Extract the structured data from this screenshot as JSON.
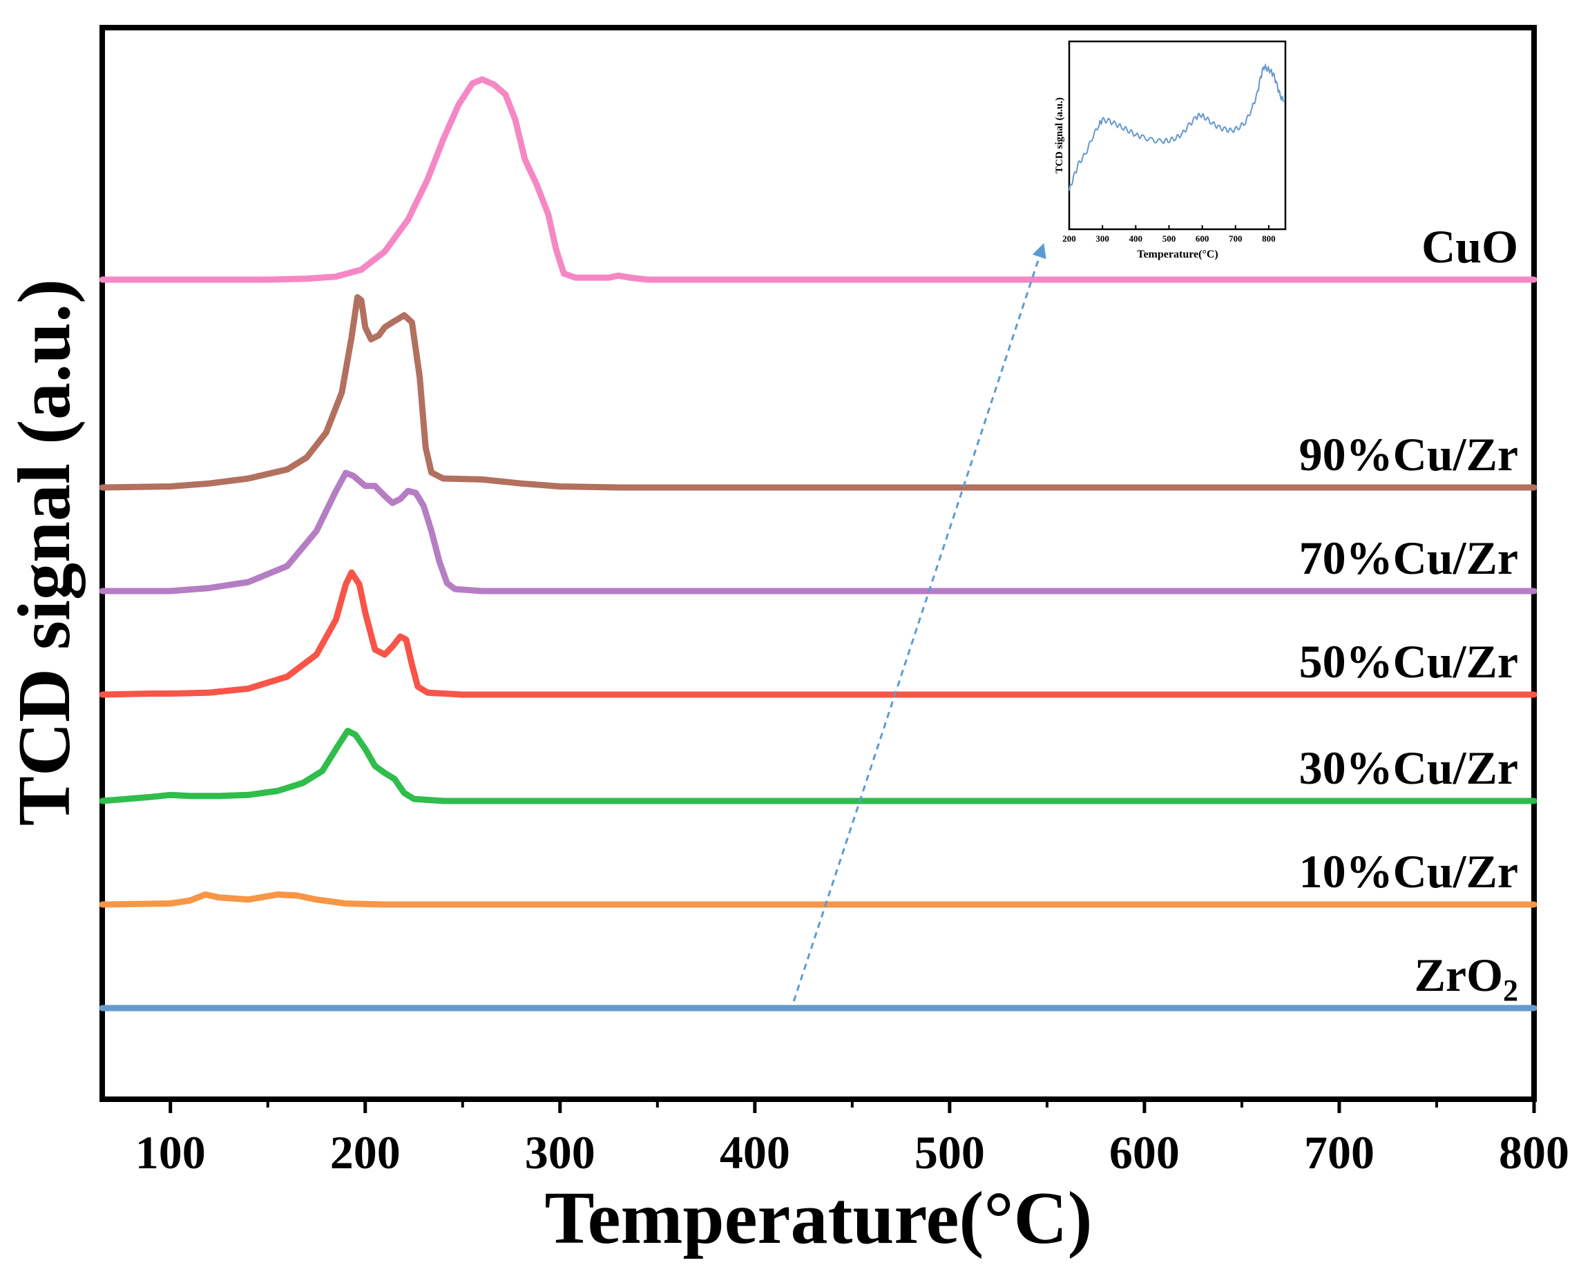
{
  "chart_data": {
    "type": "line",
    "xlabel": "Temperature(°C)",
    "ylabel": "TCD signal (a.u.)",
    "xlim": [
      65,
      800
    ],
    "xticks": [
      100,
      200,
      300,
      400,
      500,
      600,
      700,
      800
    ],
    "yticks_shown": false,
    "label_position": "right, above each trace",
    "series": [
      {
        "name": "ZrO2",
        "label": "ZrO",
        "label_sub": "2",
        "color": "#6699cc",
        "offset": 0,
        "points": [
          [
            65,
            0
          ],
          [
            800,
            0
          ]
        ]
      },
      {
        "name": "10%Cu/Zr",
        "label": "10%Cu/Zr",
        "color": "#f79646",
        "offset": 1,
        "points": [
          [
            65,
            0
          ],
          [
            100,
            1
          ],
          [
            110,
            4
          ],
          [
            118,
            10
          ],
          [
            125,
            7
          ],
          [
            140,
            5
          ],
          [
            155,
            10
          ],
          [
            165,
            9
          ],
          [
            175,
            5
          ],
          [
            190,
            1
          ],
          [
            210,
            0
          ],
          [
            800,
            0
          ]
        ]
      },
      {
        "name": "30%Cu/Zr",
        "label": "30%Cu/Zr",
        "color": "#2fbd4c",
        "offset": 2,
        "points": [
          [
            65,
            0
          ],
          [
            90,
            4
          ],
          [
            100,
            6
          ],
          [
            110,
            5
          ],
          [
            125,
            5
          ],
          [
            140,
            6
          ],
          [
            155,
            10
          ],
          [
            168,
            18
          ],
          [
            178,
            30
          ],
          [
            186,
            55
          ],
          [
            191,
            70
          ],
          [
            195,
            66
          ],
          [
            200,
            52
          ],
          [
            205,
            35
          ],
          [
            210,
            28
          ],
          [
            215,
            22
          ],
          [
            220,
            8
          ],
          [
            225,
            2
          ],
          [
            240,
            0
          ],
          [
            800,
            0
          ]
        ]
      },
      {
        "name": "50%Cu/Zr",
        "label": "50%Cu/Zr",
        "color": "#f85448",
        "offset": 3,
        "points": [
          [
            65,
            0
          ],
          [
            90,
            1
          ],
          [
            100,
            1
          ],
          [
            120,
            2
          ],
          [
            140,
            6
          ],
          [
            160,
            18
          ],
          [
            175,
            40
          ],
          [
            185,
            75
          ],
          [
            190,
            110
          ],
          [
            193,
            122
          ],
          [
            197,
            110
          ],
          [
            200,
            82
          ],
          [
            205,
            45
          ],
          [
            210,
            40
          ],
          [
            214,
            48
          ],
          [
            218,
            58
          ],
          [
            221,
            55
          ],
          [
            224,
            30
          ],
          [
            227,
            8
          ],
          [
            232,
            2
          ],
          [
            250,
            0
          ],
          [
            800,
            0
          ]
        ]
      },
      {
        "name": "70%Cu/Zr",
        "label": "70%Cu/Zr",
        "color": "#b57dc3",
        "offset": 4,
        "points": [
          [
            65,
            0
          ],
          [
            100,
            0
          ],
          [
            120,
            3
          ],
          [
            140,
            9
          ],
          [
            160,
            25
          ],
          [
            175,
            60
          ],
          [
            185,
            100
          ],
          [
            190,
            118
          ],
          [
            194,
            115
          ],
          [
            200,
            105
          ],
          [
            205,
            105
          ],
          [
            210,
            95
          ],
          [
            214,
            88
          ],
          [
            218,
            92
          ],
          [
            222,
            100
          ],
          [
            226,
            98
          ],
          [
            230,
            85
          ],
          [
            234,
            60
          ],
          [
            238,
            30
          ],
          [
            242,
            8
          ],
          [
            246,
            2
          ],
          [
            260,
            0
          ],
          [
            800,
            0
          ]
        ]
      },
      {
        "name": "90%Cu/Zr",
        "label": "90%Cu/Zr",
        "color": "#b2705f",
        "offset": 5,
        "points": [
          [
            65,
            0
          ],
          [
            100,
            1
          ],
          [
            120,
            4
          ],
          [
            140,
            9
          ],
          [
            160,
            18
          ],
          [
            170,
            30
          ],
          [
            180,
            55
          ],
          [
            188,
            95
          ],
          [
            193,
            150
          ],
          [
            196,
            190
          ],
          [
            198,
            187
          ],
          [
            200,
            160
          ],
          [
            203,
            148
          ],
          [
            207,
            152
          ],
          [
            210,
            160
          ],
          [
            214,
            165
          ],
          [
            220,
            172
          ],
          [
            224,
            165
          ],
          [
            228,
            110
          ],
          [
            231,
            40
          ],
          [
            234,
            15
          ],
          [
            240,
            9
          ],
          [
            260,
            8
          ],
          [
            280,
            4
          ],
          [
            300,
            1
          ],
          [
            330,
            0
          ],
          [
            800,
            0
          ]
        ]
      },
      {
        "name": "CuO",
        "label": "CuO",
        "color": "#f587c5",
        "offset": 6,
        "points": [
          [
            65,
            0
          ],
          [
            150,
            0
          ],
          [
            170,
            1
          ],
          [
            185,
            3
          ],
          [
            198,
            10
          ],
          [
            210,
            28
          ],
          [
            222,
            60
          ],
          [
            232,
            100
          ],
          [
            240,
            140
          ],
          [
            248,
            175
          ],
          [
            255,
            196
          ],
          [
            260,
            200
          ],
          [
            266,
            195
          ],
          [
            272,
            185
          ],
          [
            277,
            160
          ],
          [
            282,
            120
          ],
          [
            288,
            95
          ],
          [
            294,
            65
          ],
          [
            298,
            30
          ],
          [
            302,
            6
          ],
          [
            308,
            2
          ],
          [
            325,
            2
          ],
          [
            330,
            4
          ],
          [
            336,
            2
          ],
          [
            345,
            0
          ],
          [
            800,
            0
          ]
        ]
      }
    ],
    "inset": {
      "xlabel": "Temperature(°C)",
      "ylabel": "TCD signal (a.u.)",
      "xlim": [
        200,
        850
      ],
      "xticks": [
        200,
        300,
        400,
        500,
        600,
        700,
        800
      ],
      "color": "#6699cc",
      "points": [
        [
          200,
          20
        ],
        [
          215,
          34
        ],
        [
          230,
          46
        ],
        [
          250,
          55
        ],
        [
          270,
          70
        ],
        [
          290,
          82
        ],
        [
          300,
          86
        ],
        [
          320,
          85
        ],
        [
          340,
          82
        ],
        [
          360,
          79
        ],
        [
          380,
          76
        ],
        [
          400,
          72
        ],
        [
          420,
          70
        ],
        [
          450,
          67
        ],
        [
          480,
          66
        ],
        [
          500,
          67
        ],
        [
          520,
          69
        ],
        [
          540,
          73
        ],
        [
          560,
          81
        ],
        [
          580,
          88
        ],
        [
          595,
          91
        ],
        [
          610,
          88
        ],
        [
          630,
          83
        ],
        [
          650,
          79
        ],
        [
          670,
          77
        ],
        [
          690,
          76
        ],
        [
          710,
          79
        ],
        [
          730,
          84
        ],
        [
          750,
          97
        ],
        [
          765,
          110
        ],
        [
          775,
          125
        ],
        [
          785,
          136
        ],
        [
          795,
          134
        ],
        [
          805,
          132
        ],
        [
          815,
          128
        ],
        [
          825,
          118
        ],
        [
          835,
          108
        ],
        [
          845,
          104
        ]
      ]
    },
    "arrow": {
      "from": [
        420,
        0
      ],
      "to": "inset"
    }
  }
}
